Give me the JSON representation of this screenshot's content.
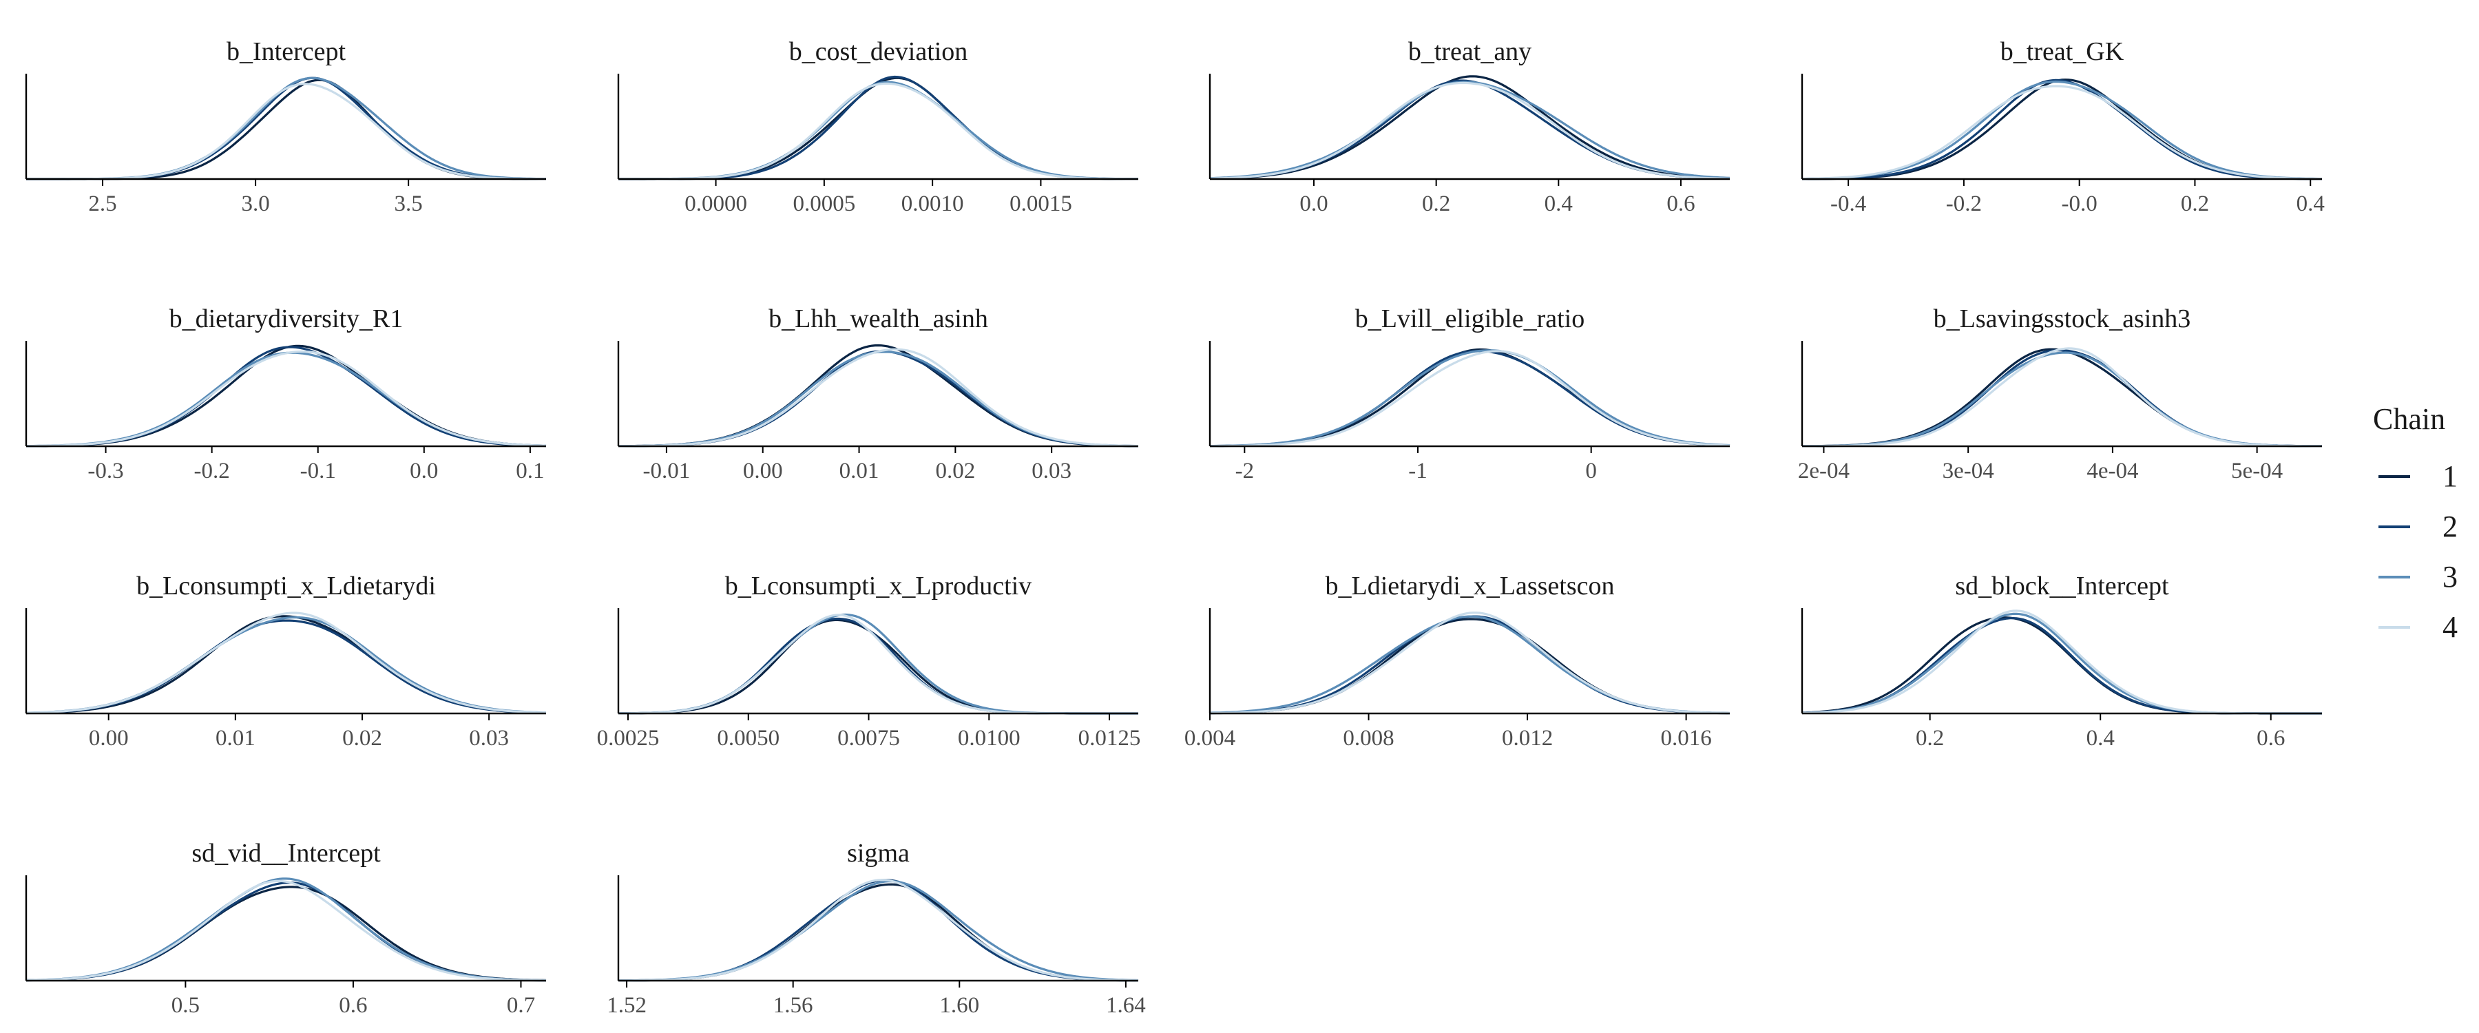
{
  "colors": {
    "chain_1": "#0b2545",
    "chain_2": "#134074",
    "chain_3": "#5b8db8",
    "chain_4": "#c9dcea",
    "axis": "#000000",
    "tick_label": "#4d4d4d",
    "title": "#1a1a1a"
  },
  "chart_data": {
    "type": "area",
    "grid": false,
    "legend_position": "right",
    "legend": {
      "title": "Chain",
      "entries": [
        "1",
        "2",
        "3",
        "4"
      ]
    },
    "panels": [
      {
        "title": "b_Intercept",
        "xlim": [
          2.25,
          3.95
        ],
        "ticks": [
          2.5,
          3.0,
          3.5
        ],
        "tick_labels": [
          "2.5",
          "3.0",
          "3.5"
        ],
        "series": [
          {
            "name": "1",
            "mean": 3.2,
            "sd": 0.19
          },
          {
            "name": "2",
            "mean": 3.19,
            "sd": 0.2
          },
          {
            "name": "3",
            "mean": 3.2,
            "sd": 0.21
          },
          {
            "name": "4",
            "mean": 3.18,
            "sd": 0.2
          }
        ]
      },
      {
        "title": "b_cost_deviation",
        "xlim": [
          -0.00045,
          0.00195
        ],
        "ticks": [
          0.0,
          0.0005,
          0.001,
          0.0015
        ],
        "tick_labels": [
          "0.0000",
          "0.0005",
          "0.0010",
          "0.0015"
        ],
        "series": [
          {
            "name": "1",
            "mean": 0.00083,
            "sd": 0.00029
          },
          {
            "name": "2",
            "mean": 0.00084,
            "sd": 0.00028
          },
          {
            "name": "3",
            "mean": 0.00082,
            "sd": 0.0003
          },
          {
            "name": "4",
            "mean": 0.00081,
            "sd": 0.00029
          }
        ]
      },
      {
        "title": "b_treat_any",
        "xlim": [
          -0.17,
          0.68
        ],
        "ticks": [
          0.0,
          0.2,
          0.4,
          0.6
        ],
        "tick_labels": [
          "0.0",
          "0.2",
          "0.4",
          "0.6"
        ],
        "series": [
          {
            "name": "1",
            "mean": 0.26,
            "sd": 0.13
          },
          {
            "name": "2",
            "mean": 0.25,
            "sd": 0.13
          },
          {
            "name": "3",
            "mean": 0.26,
            "sd": 0.14
          },
          {
            "name": "4",
            "mean": 0.25,
            "sd": 0.13
          }
        ]
      },
      {
        "title": "b_treat_GK",
        "xlim": [
          -0.48,
          0.42
        ],
        "ticks": [
          -0.4,
          -0.2,
          0.0,
          0.2,
          0.4
        ],
        "tick_labels": [
          "-0.4",
          "-0.2",
          "-0.0",
          "0.2",
          "0.4"
        ],
        "series": [
          {
            "name": "1",
            "mean": -0.02,
            "sd": 0.12
          },
          {
            "name": "2",
            "mean": -0.03,
            "sd": 0.12
          },
          {
            "name": "3",
            "mean": -0.03,
            "sd": 0.13
          },
          {
            "name": "4",
            "mean": -0.04,
            "sd": 0.13
          }
        ]
      },
      {
        "title": "b_dietarydiversity_R1",
        "xlim": [
          -0.375,
          0.115
        ],
        "ticks": [
          -0.3,
          -0.2,
          -0.1,
          0.0,
          0.1
        ],
        "tick_labels": [
          "-0.3",
          "-0.2",
          "-0.1",
          "0.0",
          "0.1"
        ],
        "series": [
          {
            "name": "1",
            "mean": -0.115,
            "sd": 0.071
          },
          {
            "name": "2",
            "mean": -0.12,
            "sd": 0.07
          },
          {
            "name": "3",
            "mean": -0.12,
            "sd": 0.073
          },
          {
            "name": "4",
            "mean": -0.118,
            "sd": 0.072
          }
        ]
      },
      {
        "title": "b_Lhh_wealth_asinh",
        "xlim": [
          -0.015,
          0.039
        ],
        "ticks": [
          -0.01,
          0.0,
          0.01,
          0.02,
          0.03
        ],
        "tick_labels": [
          "-0.01",
          "0.00",
          "0.01",
          "0.02",
          "0.03"
        ],
        "series": [
          {
            "name": "1",
            "mean": 0.0125,
            "sd": 0.0075
          },
          {
            "name": "2",
            "mean": 0.013,
            "sd": 0.0074
          },
          {
            "name": "3",
            "mean": 0.0128,
            "sd": 0.0076
          },
          {
            "name": "4",
            "mean": 0.0132,
            "sd": 0.0075
          }
        ]
      },
      {
        "title": "b_Lvill_eligible_ratio",
        "xlim": [
          -2.2,
          0.8
        ],
        "ticks": [
          -2,
          -1,
          0
        ],
        "tick_labels": [
          "-2",
          "-1",
          "0"
        ],
        "series": [
          {
            "name": "1",
            "mean": -0.6,
            "sd": 0.45
          },
          {
            "name": "2",
            "mean": -0.62,
            "sd": 0.45
          },
          {
            "name": "3",
            "mean": -0.6,
            "sd": 0.46
          },
          {
            "name": "4",
            "mean": -0.58,
            "sd": 0.44
          }
        ]
      },
      {
        "title": "b_Lsavingsstock_asinh3",
        "xlim": [
          0.000185,
          0.000545
        ],
        "ticks": [
          0.0002,
          0.0003,
          0.0004,
          0.0005
        ],
        "tick_labels": [
          "2e-04",
          "3e-04",
          "4e-04",
          "5e-04"
        ],
        "series": [
          {
            "name": "1",
            "mean": 0.000362,
            "sd": 4.8e-05
          },
          {
            "name": "2",
            "mean": 0.000365,
            "sd": 4.7e-05
          },
          {
            "name": "3",
            "mean": 0.000364,
            "sd": 4.8e-05
          },
          {
            "name": "4",
            "mean": 0.000366,
            "sd": 4.6e-05
          }
        ]
      },
      {
        "title": "b_Lconsumpti_x_Ldietarydi",
        "xlim": [
          -0.0065,
          0.0345
        ],
        "ticks": [
          0.0,
          0.01,
          0.02,
          0.03
        ],
        "tick_labels": [
          "0.00",
          "0.01",
          "0.02",
          "0.03"
        ],
        "series": [
          {
            "name": "1",
            "mean": 0.0143,
            "sd": 0.0062
          },
          {
            "name": "2",
            "mean": 0.014,
            "sd": 0.0063
          },
          {
            "name": "3",
            "mean": 0.0142,
            "sd": 0.0065
          },
          {
            "name": "4",
            "mean": 0.0141,
            "sd": 0.0064
          }
        ]
      },
      {
        "title": "b_Lconsumpti_x_Lproductiv",
        "xlim": [
          0.0023,
          0.0131
        ],
        "ticks": [
          0.0025,
          0.005,
          0.0075,
          0.01,
          0.0125
        ],
        "tick_labels": [
          "0.0025",
          "0.0050",
          "0.0075",
          "0.0100",
          "0.0125"
        ],
        "series": [
          {
            "name": "1",
            "mean": 0.0069,
            "sd": 0.0012
          },
          {
            "name": "2",
            "mean": 0.0068,
            "sd": 0.0012
          },
          {
            "name": "3",
            "mean": 0.0069,
            "sd": 0.00125
          },
          {
            "name": "4",
            "mean": 0.0068,
            "sd": 0.0012
          }
        ]
      },
      {
        "title": "b_Ldietarydi_x_Lassetscon",
        "xlim": [
          0.004,
          0.0171
        ],
        "ticks": [
          0.004,
          0.008,
          0.012,
          0.016
        ],
        "tick_labels": [
          "0.004",
          "0.008",
          "0.012",
          "0.016"
        ],
        "series": [
          {
            "name": "1",
            "mean": 0.0106,
            "sd": 0.0019
          },
          {
            "name": "2",
            "mean": 0.0105,
            "sd": 0.0019
          },
          {
            "name": "3",
            "mean": 0.0104,
            "sd": 0.002
          },
          {
            "name": "4",
            "mean": 0.0106,
            "sd": 0.0019
          }
        ]
      },
      {
        "title": "sd_block__Intercept",
        "xlim": [
          0.05,
          0.66
        ],
        "ticks": [
          0.2,
          0.4,
          0.6
        ],
        "tick_labels": [
          "0.2",
          "0.4",
          "0.6"
        ],
        "series": [
          {
            "name": "1",
            "mean": 0.285,
            "sd": 0.075
          },
          {
            "name": "2",
            "mean": 0.29,
            "sd": 0.074
          },
          {
            "name": "3",
            "mean": 0.295,
            "sd": 0.076
          },
          {
            "name": "4",
            "mean": 0.3,
            "sd": 0.075
          }
        ]
      },
      {
        "title": "sd_vid__Intercept",
        "xlim": [
          0.405,
          0.715
        ],
        "ticks": [
          0.5,
          0.6,
          0.7
        ],
        "tick_labels": [
          "0.5",
          "0.6",
          "0.7"
        ],
        "series": [
          {
            "name": "1",
            "mean": 0.56,
            "sd": 0.046
          },
          {
            "name": "2",
            "mean": 0.558,
            "sd": 0.045
          },
          {
            "name": "3",
            "mean": 0.557,
            "sd": 0.046
          },
          {
            "name": "4",
            "mean": 0.556,
            "sd": 0.045
          }
        ]
      },
      {
        "title": "sigma",
        "xlim": [
          1.518,
          1.643
        ],
        "ticks": [
          1.52,
          1.56,
          1.6,
          1.64
        ],
        "tick_labels": [
          "1.52",
          "1.56",
          "1.60",
          "1.64"
        ],
        "series": [
          {
            "name": "1",
            "mean": 1.582,
            "sd": 0.017
          },
          {
            "name": "2",
            "mean": 1.581,
            "sd": 0.017
          },
          {
            "name": "3",
            "mean": 1.583,
            "sd": 0.018
          },
          {
            "name": "4",
            "mean": 1.582,
            "sd": 0.017
          }
        ]
      }
    ]
  }
}
